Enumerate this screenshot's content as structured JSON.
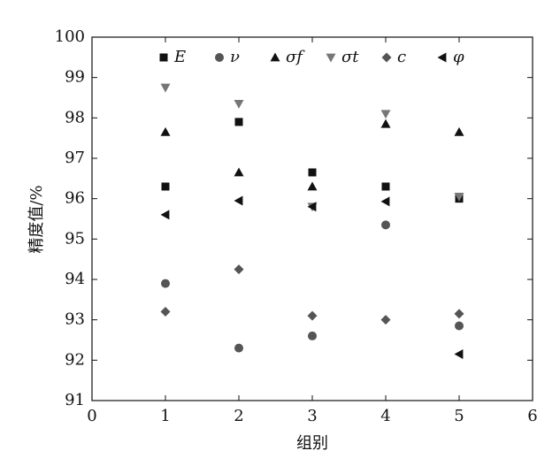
{
  "chart_data": {
    "type": "scatter",
    "x_label": "组别",
    "y_label": "精度值/%",
    "x": [
      1,
      2,
      3,
      4,
      5
    ],
    "series": [
      {
        "name": "E",
        "color": "#111111",
        "marker": "square",
        "values": [
          96.3,
          97.9,
          96.65,
          96.3,
          96.0
        ]
      },
      {
        "name": "ν",
        "color": "#555555",
        "marker": "circle",
        "values": [
          93.9,
          92.3,
          92.6,
          95.35,
          92.85
        ]
      },
      {
        "name": "σf",
        "color": "#111111",
        "marker": "triangle-up",
        "values": [
          97.65,
          96.65,
          96.3,
          97.85,
          97.65
        ]
      },
      {
        "name": "σt",
        "color": "#777777",
        "marker": "triangle-down",
        "values": [
          98.75,
          98.35,
          95.8,
          98.1,
          96.05
        ]
      },
      {
        "name": "c",
        "color": "#555555",
        "marker": "diamond",
        "values": [
          93.2,
          94.25,
          93.1,
          93.0,
          93.15
        ]
      },
      {
        "name": "φ",
        "color": "#111111",
        "marker": "triangle-left",
        "values": [
          95.6,
          95.95,
          95.8,
          95.93,
          92.15
        ]
      }
    ],
    "xlim": [
      0,
      6
    ],
    "xticks": [
      0,
      1,
      2,
      3,
      4,
      5,
      6
    ],
    "ylim": [
      91,
      100
    ],
    "yticks": [
      91,
      92,
      93,
      94,
      95,
      96,
      97,
      98,
      99,
      100
    ],
    "grid": false
  }
}
